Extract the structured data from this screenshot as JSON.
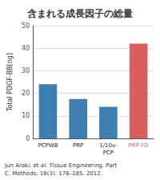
{
  "chart_data": {
    "type": "bar",
    "title": "含まれる成長因子の総量",
    "categories": [
      "PCPWB",
      "PRP",
      "1/10v-\nPCP",
      "PRP-FD"
    ],
    "values": [
      24.0,
      17.5,
      14.0,
      42.0
    ],
    "colors": [
      "#3d80b0",
      "#3d80b0",
      "#3d80b0",
      "#d95f5f"
    ],
    "ylabel": "Total PDGF-BB[ng]",
    "ylim": [
      0,
      50
    ],
    "yticks": [
      0,
      10,
      20,
      30,
      40,
      50
    ],
    "grid": true,
    "annotations": [
      "Jun Araki, et al. Tissue Engineering. Part\nC, Methods; 18(3): 176–185. 2012."
    ]
  }
}
